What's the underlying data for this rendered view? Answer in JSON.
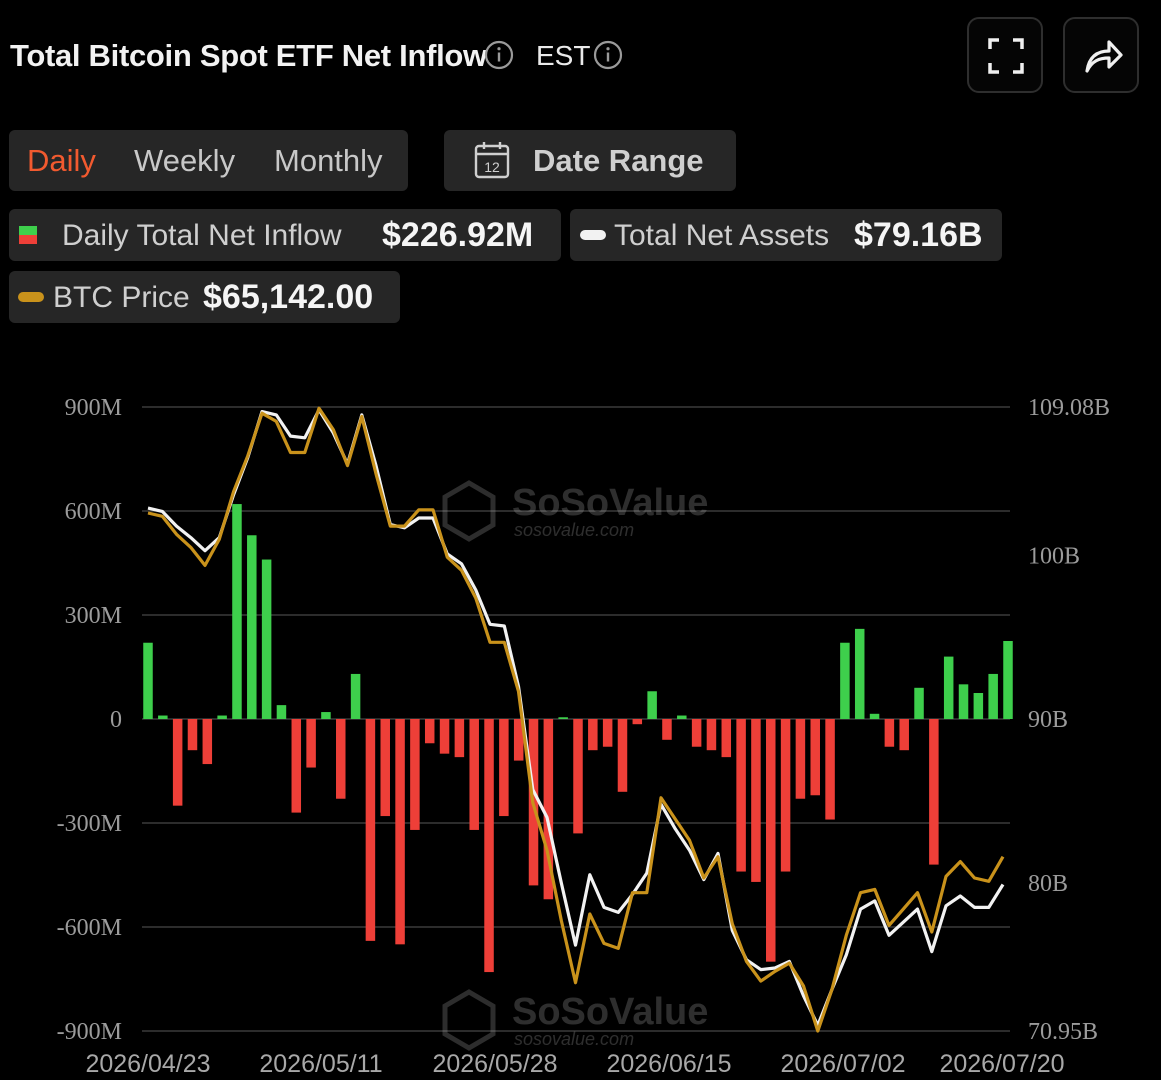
{
  "header": {
    "title": "Total Bitcoin Spot ETF Net Inflow",
    "timezone": "EST",
    "icons": [
      "info-icon",
      "info-icon",
      "fullscreen-icon",
      "share-icon"
    ]
  },
  "tabs": [
    {
      "label": "Daily",
      "active": true
    },
    {
      "label": "Weekly",
      "active": false
    },
    {
      "label": "Monthly",
      "active": false
    }
  ],
  "date_range": {
    "label": "Date Range",
    "icon": "calendar-icon",
    "icon_day": "12"
  },
  "legend": {
    "inflow": {
      "name": "Daily Total Net Inflow",
      "value": "$226.92M"
    },
    "assets": {
      "name": "Total Net Assets",
      "value": "$79.16B"
    },
    "price": {
      "name": "BTC Price",
      "value": "$65,142.00"
    }
  },
  "colors": {
    "positive": "#3ecf4c",
    "negative": "#ee3f38",
    "assets_line": "#f2f2f2",
    "price_line": "#c9921b",
    "accent": "#f25a2f",
    "grid": "#3a3a3a"
  },
  "watermark": {
    "brand": "SoSoValue",
    "site": "sosovalue.com"
  },
  "chart_data": {
    "type": "bar",
    "x_ticks": [
      "2026/04/23",
      "2026/05/11",
      "2026/05/28",
      "2026/06/15",
      "2026/07/02",
      "2026/07/20"
    ],
    "y_left": {
      "ticks": [
        "900M",
        "600M",
        "300M",
        "0",
        "-300M",
        "-600M",
        "-900M"
      ],
      "range": [
        -900,
        900
      ],
      "unit": "M"
    },
    "y_right": {
      "ticks": [
        "109.08B",
        "100B",
        "90B",
        "80B",
        "70.95B"
      ],
      "range": [
        70.95,
        109.08
      ],
      "unit": "B"
    },
    "grid": true,
    "series": [
      {
        "name": "Daily Total Net Inflow",
        "type": "bar",
        "values": [
          220,
          10,
          -250,
          -90,
          -130,
          10,
          620,
          530,
          460,
          40,
          -270,
          -140,
          20,
          -230,
          130,
          -640,
          -280,
          -650,
          -320,
          -70,
          -100,
          -110,
          -320,
          -730,
          -280,
          -120,
          -480,
          -520,
          5,
          -330,
          -90,
          -80,
          -210,
          -15,
          80,
          -60,
          10,
          -80,
          -90,
          -110,
          -440,
          -470,
          -700,
          -440,
          -230,
          -220,
          -290,
          220,
          260,
          15,
          -80,
          -90,
          90,
          -420,
          180,
          100,
          75,
          130,
          225
        ]
      },
      {
        "name": "Total Net Assets",
        "type": "line",
        "values": [
          102.9,
          102.7,
          101.8,
          101.1,
          100.3,
          101.1,
          103.7,
          106.0,
          108.8,
          108.6,
          107.3,
          107.2,
          108.9,
          107.5,
          105.6,
          108.6,
          105.5,
          101.9,
          101.7,
          102.3,
          102.3,
          100.1,
          99.5,
          97.9,
          95.8,
          95.7,
          92.0,
          85.7,
          84.0,
          80.0,
          76.2,
          80.5,
          78.5,
          78.2,
          79.3,
          80.6,
          84.8,
          83.3,
          82.0,
          80.2,
          81.8,
          77.1,
          75.3,
          74.7,
          74.8,
          75.2,
          73.1,
          71.3,
          73.5,
          75.6,
          78.4,
          78.9,
          76.8,
          77.6,
          78.4,
          75.8,
          78.6,
          79.2,
          78.5,
          78.5,
          79.9
        ]
      },
      {
        "name": "BTC Price",
        "type": "line",
        "values": [
          102.6,
          102.4,
          101.3,
          100.5,
          99.4,
          101.0,
          103.9,
          106.1,
          108.7,
          108.2,
          106.3,
          106.3,
          109.0,
          107.7,
          105.5,
          108.5,
          105.0,
          101.8,
          101.8,
          102.8,
          102.8,
          99.9,
          99.1,
          97.4,
          94.7,
          94.7,
          91.7,
          84.9,
          82.0,
          77.7,
          73.9,
          78.1,
          76.3,
          76.0,
          79.4,
          79.4,
          85.2,
          83.9,
          82.6,
          80.3,
          81.6,
          77.5,
          75.2,
          74.0,
          74.6,
          75.1,
          73.7,
          70.95,
          73.5,
          76.8,
          79.4,
          79.6,
          77.4,
          78.4,
          79.4,
          77.0,
          80.4,
          81.3,
          80.3,
          80.1,
          81.6
        ]
      }
    ]
  }
}
